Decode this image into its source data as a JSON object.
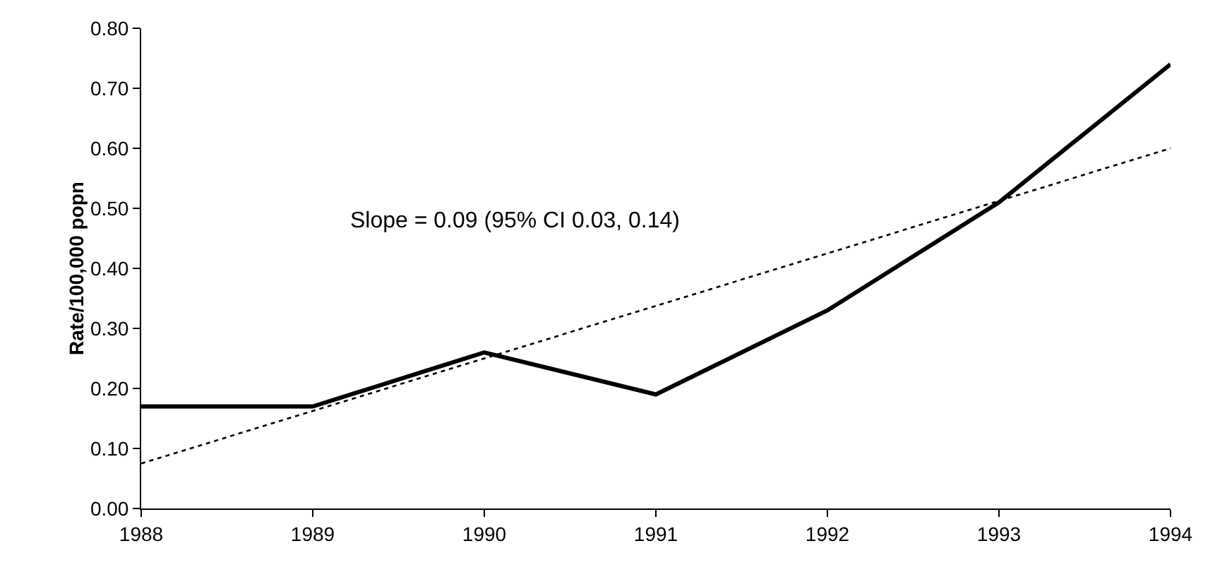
{
  "chart_data": {
    "type": "line",
    "ylabel": "Rate/100,000 popn",
    "x": [
      1988,
      1989,
      1990,
      1991,
      1992,
      1993,
      1994
    ],
    "series": [
      {
        "color": "#000000",
        "line_style": "solid",
        "values": [
          0.17,
          0.17,
          0.26,
          0.19,
          0.33,
          0.51,
          0.74
        ]
      },
      {
        "color": "#000000",
        "line_style": "dotted",
        "x": [
          1988,
          1994
        ],
        "values": [
          0.075,
          0.6
        ]
      }
    ],
    "annotations": [
      "Slope = 0.09 (95% CI 0.03, 0.14)"
    ],
    "xlim": [
      1988,
      1994
    ],
    "xticks": [
      1988,
      1989,
      1990,
      1991,
      1992,
      1993,
      1994
    ],
    "ylim": [
      0,
      0.8
    ],
    "yticks": [
      {
        "value": 0,
        "label": "0.00"
      },
      {
        "value": 0.1,
        "label": "0.10"
      },
      {
        "value": 0.2,
        "label": "0.20"
      },
      {
        "value": 0.3,
        "label": "0.30"
      },
      {
        "value": 0.4,
        "label": "0.40"
      },
      {
        "value": 0.5,
        "label": "0.50"
      },
      {
        "value": 0.6,
        "label": "0.60"
      },
      {
        "value": 0.7,
        "label": "0.70"
      },
      {
        "value": 0.8,
        "label": "0.80"
      }
    ],
    "grid": false,
    "marker": "none"
  }
}
